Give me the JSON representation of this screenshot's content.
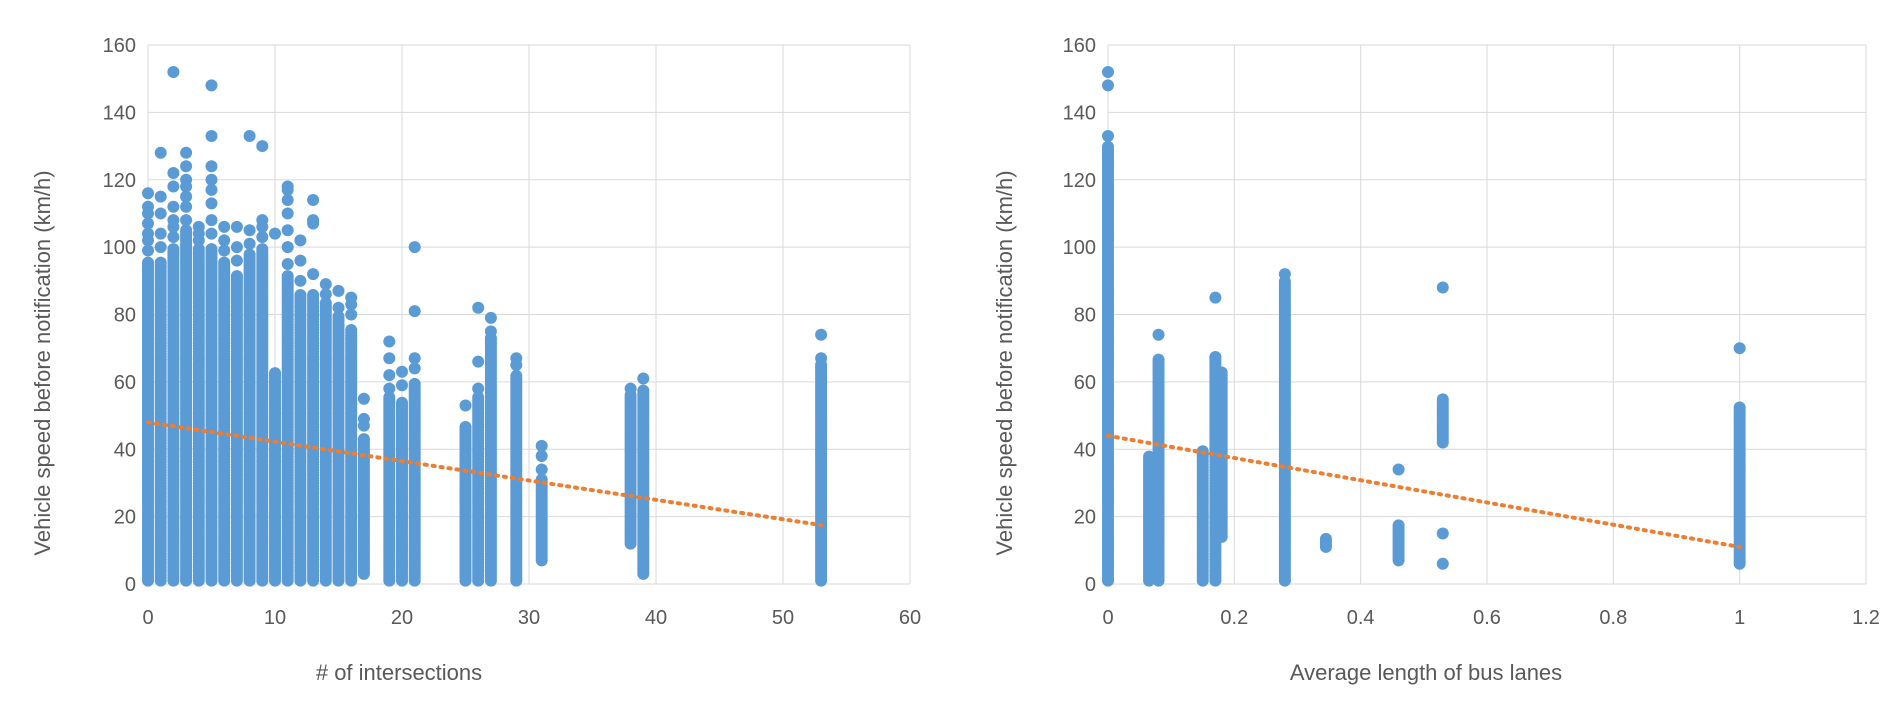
{
  "colors": {
    "points": "#5b9bd5",
    "trend": "#ed7d31",
    "grid": "#d9d9d9",
    "text": "#595959"
  },
  "chart_data": [
    {
      "type": "scatter",
      "title": "",
      "xlabel": "# of intersections",
      "ylabel": "Vehicle speed before notification (km/h)",
      "xlim": [
        0,
        60
      ],
      "ylim": [
        0,
        160
      ],
      "xticks": [
        0,
        10,
        20,
        30,
        40,
        50,
        60
      ],
      "yticks": [
        0,
        20,
        40,
        60,
        80,
        100,
        120,
        140,
        160
      ],
      "grid": true,
      "trendline": {
        "style": "dotted",
        "x": [
          0,
          53
        ],
        "y": [
          48,
          17.5
        ]
      },
      "series": [
        {
          "name": "observations",
          "columns": [
            {
              "x": 0,
              "y": [
                1,
                96
              ],
              "outliers": [
                99,
                102,
                104,
                107,
                110,
                112,
                116
              ]
            },
            {
              "x": 1,
              "y": [
                1,
                96
              ],
              "outliers": [
                100,
                104,
                110,
                115,
                128
              ]
            },
            {
              "x": 2,
              "y": [
                1,
                100
              ],
              "outliers": [
                103,
                106,
                108,
                112,
                118,
                122,
                152
              ]
            },
            {
              "x": 3,
              "y": [
                1,
                105
              ],
              "outliers": [
                108,
                112,
                115,
                118,
                120,
                124,
                128
              ]
            },
            {
              "x": 4,
              "y": [
                1,
                100
              ],
              "outliers": [
                102,
                104,
                106
              ]
            },
            {
              "x": 5,
              "y": [
                1,
                100
              ],
              "outliers": [
                104,
                108,
                113,
                117,
                120,
                124,
                133,
                148
              ]
            },
            {
              "x": 6,
              "y": [
                1,
                96
              ],
              "outliers": [
                99,
                102,
                106
              ]
            },
            {
              "x": 7,
              "y": [
                1,
                92
              ],
              "outliers": [
                96,
                100,
                106
              ]
            },
            {
              "x": 8,
              "y": [
                1,
                98
              ],
              "outliers": [
                101,
                105,
                133
              ]
            },
            {
              "x": 9,
              "y": [
                1,
                100
              ],
              "outliers": [
                103,
                106,
                108,
                130
              ]
            },
            {
              "x": 10,
              "y": [
                1,
                63
              ],
              "outliers": [
                104
              ]
            },
            {
              "x": 11,
              "y": [
                1,
                92
              ],
              "outliers": [
                95,
                100,
                105,
                110,
                114,
                117,
                118
              ]
            },
            {
              "x": 12,
              "y": [
                1,
                86
              ],
              "outliers": [
                90,
                96,
                102
              ]
            },
            {
              "x": 13,
              "y": [
                1,
                86
              ],
              "outliers": [
                92,
                107,
                108,
                114
              ]
            },
            {
              "x": 14,
              "y": [
                1,
                84
              ],
              "outliers": [
                86,
                89
              ]
            },
            {
              "x": 15,
              "y": [
                1,
                80
              ],
              "outliers": [
                82,
                87
              ]
            },
            {
              "x": 16,
              "y": [
                1,
                76
              ],
              "outliers": [
                80,
                83,
                85
              ]
            },
            {
              "x": 17,
              "y": [
                3,
                43
              ],
              "outliers": [
                47,
                49,
                55
              ]
            },
            {
              "x": 19,
              "y": [
                1,
                56
              ],
              "outliers": [
                58,
                62,
                67,
                72
              ]
            },
            {
              "x": 20,
              "y": [
                1,
                54
              ],
              "outliers": [
                59,
                63
              ]
            },
            {
              "x": 21,
              "y": [
                1,
                60
              ],
              "outliers": [
                64,
                67,
                81,
                100
              ]
            },
            {
              "x": 25,
              "y": [
                1,
                47
              ],
              "outliers": [
                53
              ]
            },
            {
              "x": 26,
              "y": [
                1,
                56
              ],
              "outliers": [
                58,
                66,
                82
              ]
            },
            {
              "x": 27,
              "y": [
                1,
                73
              ],
              "outliers": [
                75,
                79
              ]
            },
            {
              "x": 29,
              "y": [
                1,
                62
              ],
              "outliers": [
                65,
                67
              ]
            },
            {
              "x": 31,
              "y": [
                7,
                31
              ],
              "outliers": [
                34,
                38,
                41
              ]
            },
            {
              "x": 38,
              "y": [
                12,
                56
              ],
              "outliers": [
                58
              ]
            },
            {
              "x": 39,
              "y": [
                3,
                58
              ],
              "outliers": [
                61
              ]
            },
            {
              "x": 53,
              "y": [
                1,
                65
              ],
              "outliers": [
                67,
                74
              ]
            }
          ]
        }
      ]
    },
    {
      "type": "scatter",
      "title": "",
      "xlabel": "Average length of bus lanes",
      "ylabel": "Vehicle speed before notification (km/h)",
      "xlim": [
        0,
        1.2
      ],
      "ylim": [
        0,
        160
      ],
      "xticks": [
        0,
        0.2,
        0.4,
        0.6,
        0.8,
        1,
        1.2
      ],
      "yticks": [
        0,
        20,
        40,
        60,
        80,
        100,
        120,
        140,
        160
      ],
      "grid": true,
      "trendline": {
        "style": "dotted",
        "x": [
          0,
          1
        ],
        "y": [
          44,
          11
        ]
      },
      "series": [
        {
          "name": "observations",
          "columns": [
            {
              "x": 0,
              "y": [
                1,
                130
              ],
              "outliers": [
                133,
                148,
                152
              ]
            },
            {
              "x": 0.065,
              "y": [
                1,
                38
              ],
              "outliers": []
            },
            {
              "x": 0.08,
              "y": [
                1,
                67
              ],
              "outliers": [
                74
              ]
            },
            {
              "x": 0.15,
              "y": [
                1,
                40
              ],
              "outliers": []
            },
            {
              "x": 0.17,
              "y": [
                1,
                68
              ],
              "outliers": [
                85
              ]
            },
            {
              "x": 0.18,
              "y": [
                14,
                63
              ],
              "outliers": []
            },
            {
              "x": 0.28,
              "y": [
                1,
                90
              ],
              "outliers": [
                92
              ]
            },
            {
              "x": 0.345,
              "y": [
                11,
                14
              ],
              "outliers": []
            },
            {
              "x": 0.46,
              "y": [
                7,
                18
              ],
              "outliers": [
                34
              ]
            },
            {
              "x": 0.53,
              "y": [
                42,
                55
              ],
              "outliers": [
                6,
                15,
                88
              ]
            },
            {
              "x": 1,
              "y": [
                6,
                53
              ],
              "outliers": [
                70
              ]
            }
          ]
        }
      ]
    }
  ]
}
